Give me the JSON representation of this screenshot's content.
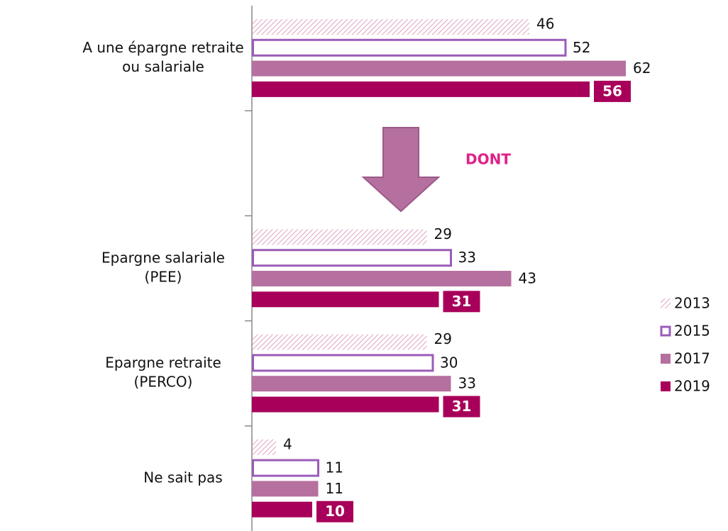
{
  "chart_data": {
    "type": "bar",
    "orientation": "horizontal",
    "categories": [
      [
        "A une épargne retraite",
        "ou salariale"
      ],
      null,
      [
        "Epargne salariale",
        "(PEE)"
      ],
      [
        "Epargne retraite",
        "(PERCO)"
      ],
      [
        "Ne sait pas"
      ]
    ],
    "annotations": [
      "DONT"
    ],
    "series": [
      {
        "name": "2013",
        "color": "#d98ab5",
        "style": "hatched",
        "values": [
          46,
          null,
          29,
          29,
          4
        ]
      },
      {
        "name": "2015",
        "color": "#9b5cb8",
        "style": "outline",
        "values": [
          52,
          null,
          33,
          30,
          11
        ]
      },
      {
        "name": "2017",
        "color": "#b5709f",
        "style": "solid",
        "values": [
          62,
          null,
          43,
          33,
          11
        ]
      },
      {
        "name": "2019",
        "color": "#a8005a",
        "style": "solid-boxed-label",
        "values": [
          56,
          null,
          31,
          31,
          10
        ]
      }
    ],
    "legend": "right"
  }
}
